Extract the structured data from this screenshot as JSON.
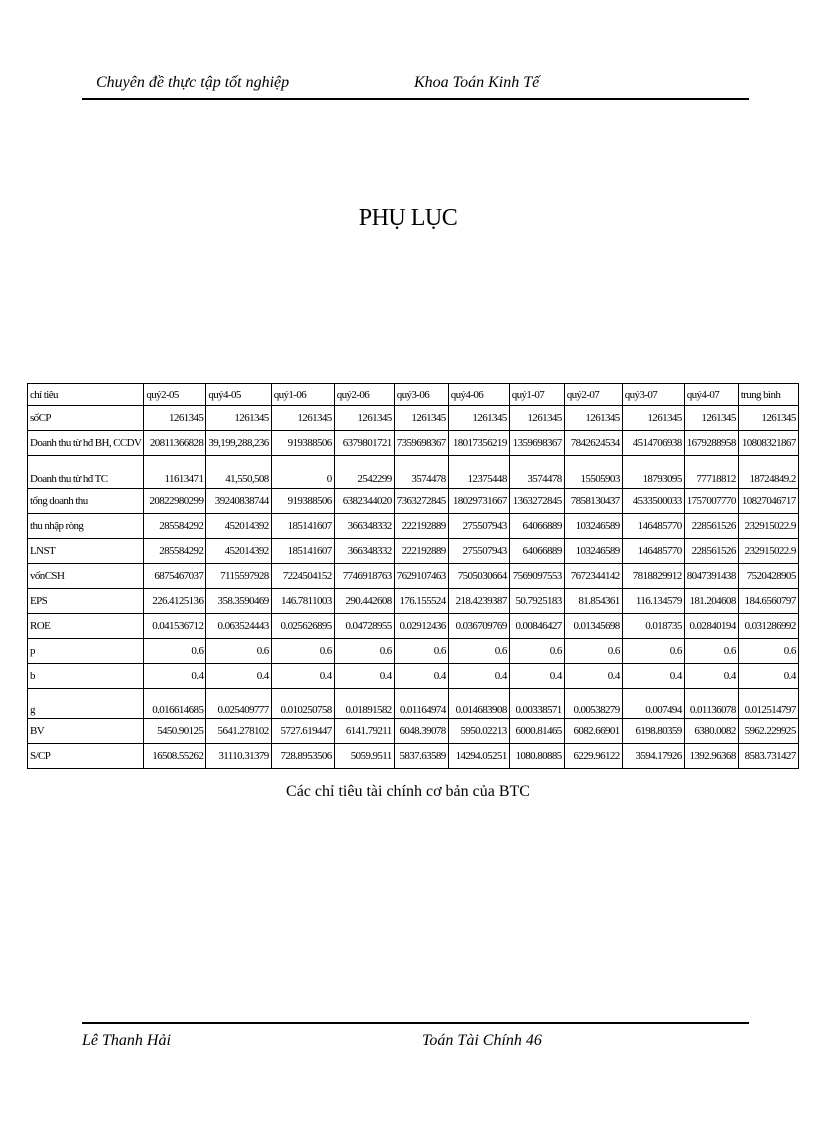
{
  "header": {
    "left": "Chuyên đề thực tập tốt nghiệp",
    "right": "Khoa Toán Kinh Tế"
  },
  "title": "PHỤ LỤC",
  "table": {
    "columns": [
      "chỉ tiêu",
      "quý2-05",
      "quý4-05",
      "quý1-06",
      "quý2-06",
      "quý3-06",
      "quý4-06",
      "quý1-07",
      "quý2-07",
      "quý3-07",
      "quý4-07",
      "trung bình"
    ],
    "rows": [
      [
        "sốCP",
        "1261345",
        "1261345",
        "1261345",
        "1261345",
        "1261345",
        "1261345",
        "1261345",
        "1261345",
        "1261345",
        "1261345",
        "1261345"
      ],
      [
        "Doanh thu từ hđ BH, CCDV",
        "20811366828",
        "39,199,288,236",
        "919388506",
        "6379801721",
        "7359698367",
        "18017356219",
        "1359698367",
        "7842624534",
        "4514706938",
        "1679288958",
        "10808321867"
      ],
      [
        "Doanh thu từ hđ TC",
        "11613471",
        "41,550,508",
        "0",
        "2542299",
        "3574478",
        "12375448",
        "3574478",
        "15505903",
        "18793095",
        "77718812",
        "18724849.2"
      ],
      [
        "tổng doanh thu",
        "20822980299",
        "39240838744",
        "919388506",
        "6382344020",
        "7363272845",
        "18029731667",
        "1363272845",
        "7858130437",
        "4533500033",
        "1757007770",
        "10827046717"
      ],
      [
        "thu nhập ròng",
        "285584292",
        "452014392",
        "185141607",
        "366348332",
        "222192889",
        "275507943",
        "64066889",
        "103246589",
        "146485770",
        "228561526",
        "232915022.9"
      ],
      [
        "LNST",
        "285584292",
        "452014392",
        "185141607",
        "366348332",
        "222192889",
        "275507943",
        "64066889",
        "103246589",
        "146485770",
        "228561526",
        "232915022.9"
      ],
      [
        "vốnCSH",
        "6875467037",
        "7115597928",
        "7224504152",
        "7746918763",
        "7629107463",
        "7505030664",
        "7569097553",
        "7672344142",
        "7818829912",
        "8047391438",
        "7520428905"
      ],
      [
        "EPS",
        "226.4125136",
        "358.3590469",
        "146.7811003",
        "290.442608",
        "176.155524",
        "218.4239387",
        "50.7925183",
        "81.854361",
        "116.134579",
        "181.204608",
        "184.6560797"
      ],
      [
        "ROE",
        "0.041536712",
        "0.063524443",
        "0.025626895",
        "0.04728955",
        "0.02912436",
        "0.036709769",
        "0.00846427",
        "0.01345698",
        "0.018735",
        "0.02840194",
        "0.031286992"
      ],
      [
        "p",
        "0.6",
        "0.6",
        "0.6",
        "0.6",
        "0.6",
        "0.6",
        "0.6",
        "0.6",
        "0.6",
        "0.6",
        "0.6"
      ],
      [
        "b",
        "0.4",
        "0.4",
        "0.4",
        "0.4",
        "0.4",
        "0.4",
        "0.4",
        "0.4",
        "0.4",
        "0.4",
        "0.4"
      ],
      [
        "g",
        "0.016614685",
        "0.025409777",
        "0.010250758",
        "0.01891582",
        "0.01164974",
        "0.014683908",
        "0.00338571",
        "0.00538279",
        "0.007494",
        "0.01136078",
        "0.012514797"
      ],
      [
        "BV",
        "5450.90125",
        "5641.278102",
        "5727.619447",
        "6141.79211",
        "6048.39078",
        "5950.02213",
        "6000.81465",
        "6082.66901",
        "6198.80359",
        "6380.0082",
        "5962.229925"
      ],
      [
        "S/CP",
        "16508.55262",
        "31110.31379",
        "728.8953506",
        "5059.9511",
        "5837.63589",
        "14294.05251",
        "1080.80885",
        "6229.96122",
        "3594.17926",
        "1392.96368",
        "8583.731427"
      ]
    ]
  },
  "caption": "Các chỉ tiêu tài chính cơ bản của BTC",
  "footer": {
    "left": "Lê Thanh Hải",
    "right": "Toán Tài Chính 46"
  }
}
